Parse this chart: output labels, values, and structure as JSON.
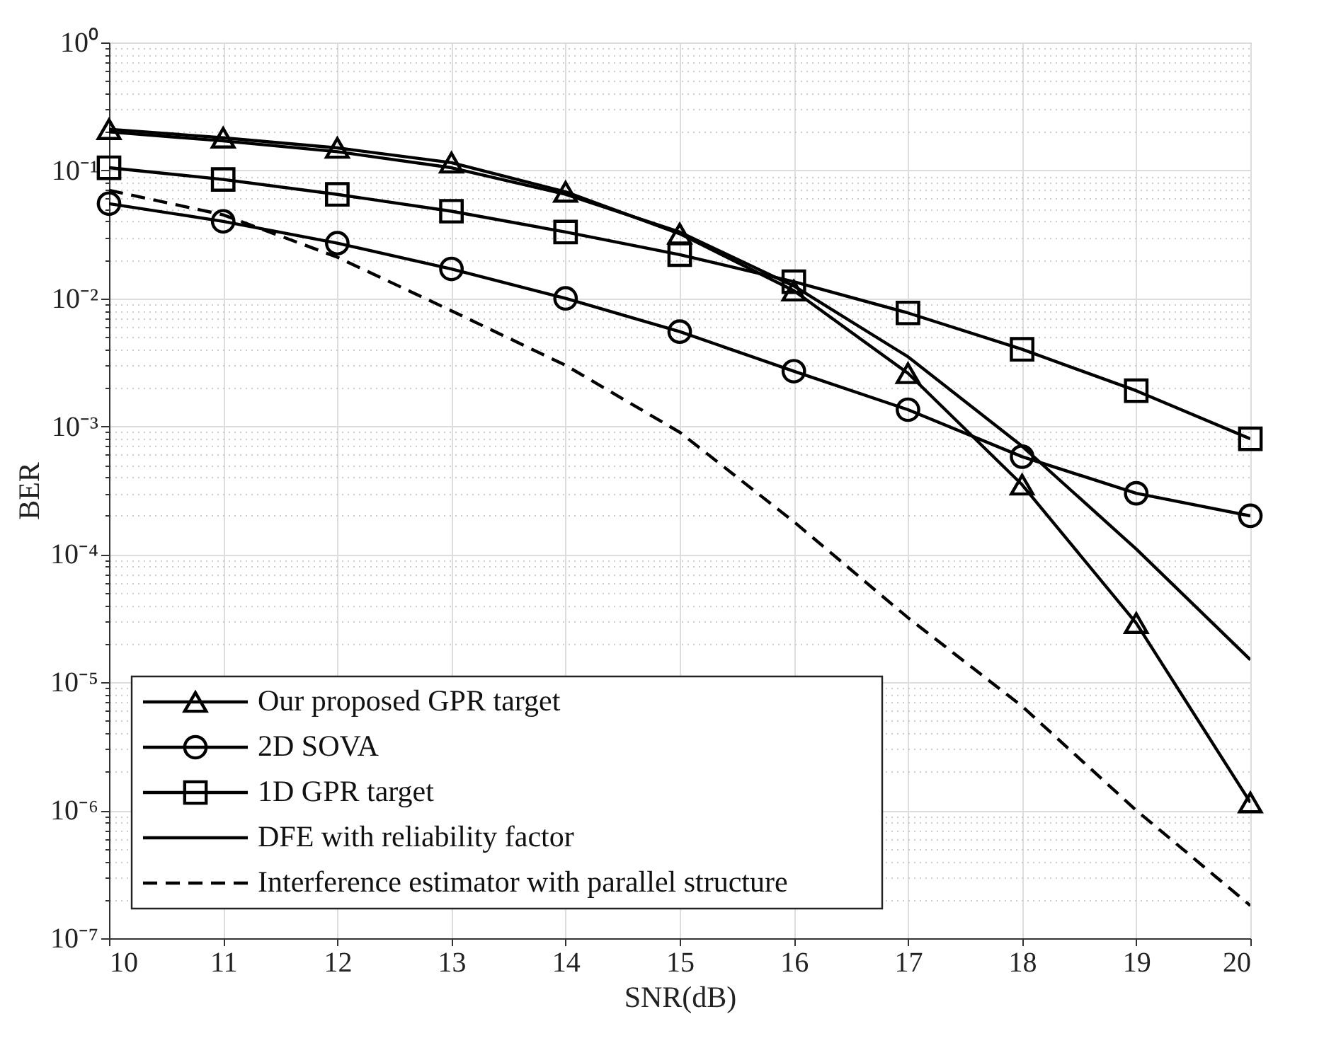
{
  "chart_data": {
    "type": "line",
    "xlabel": "SNR(dB)",
    "ylabel": "BER",
    "log": "y",
    "grid": true,
    "legend": "bottom left",
    "x": [
      10,
      11,
      12,
      13,
      14,
      15,
      16,
      17,
      18,
      19,
      20
    ],
    "xlim": [
      10,
      20
    ],
    "xticks": [
      10,
      11,
      12,
      13,
      14,
      15,
      16,
      17,
      18,
      19,
      20
    ],
    "ylim": [
      1e-07,
      1
    ],
    "yticks": [
      {
        "value": 1e-07,
        "label": "10⁻⁷"
      },
      {
        "value": 2e-07,
        "label": null
      },
      {
        "value": 3e-07,
        "label": null
      },
      {
        "value": 4e-07,
        "label": null
      },
      {
        "value": 5e-07,
        "label": null
      },
      {
        "value": 6e-07,
        "label": null
      },
      {
        "value": 7e-07,
        "label": null
      },
      {
        "value": 8e-07,
        "label": null
      },
      {
        "value": 9e-07,
        "label": null
      },
      {
        "value": 1e-06,
        "label": "10⁻⁶"
      },
      {
        "value": 2e-06,
        "label": null
      },
      {
        "value": 3e-06,
        "label": null
      },
      {
        "value": 4e-06,
        "label": null
      },
      {
        "value": 5e-06,
        "label": null
      },
      {
        "value": 6e-06,
        "label": null
      },
      {
        "value": 7e-06,
        "label": null
      },
      {
        "value": 8e-06,
        "label": null
      },
      {
        "value": 9e-06,
        "label": null
      },
      {
        "value": 1e-05,
        "label": "10⁻⁵"
      },
      {
        "value": 2e-05,
        "label": null
      },
      {
        "value": 3e-05,
        "label": null
      },
      {
        "value": 4e-05,
        "label": null
      },
      {
        "value": 5e-05,
        "label": null
      },
      {
        "value": 6e-05,
        "label": null
      },
      {
        "value": 7e-05,
        "label": null
      },
      {
        "value": 8e-05,
        "label": null
      },
      {
        "value": 9e-05,
        "label": null
      },
      {
        "value": 0.0001,
        "label": "10⁻⁴"
      },
      {
        "value": 0.0002,
        "label": null
      },
      {
        "value": 0.0003,
        "label": null
      },
      {
        "value": 0.0004,
        "label": null
      },
      {
        "value": 0.0005,
        "label": null
      },
      {
        "value": 0.0006,
        "label": null
      },
      {
        "value": 0.0007,
        "label": null
      },
      {
        "value": 0.0008,
        "label": null
      },
      {
        "value": 0.0009,
        "label": null
      },
      {
        "value": 0.001,
        "label": "10⁻³"
      },
      {
        "value": 0.002,
        "label": null
      },
      {
        "value": 0.003,
        "label": null
      },
      {
        "value": 0.004,
        "label": null
      },
      {
        "value": 0.005,
        "label": null
      },
      {
        "value": 0.006,
        "label": null
      },
      {
        "value": 0.007,
        "label": null
      },
      {
        "value": 0.008,
        "label": null
      },
      {
        "value": 0.009,
        "label": null
      },
      {
        "value": 0.01,
        "label": "10⁻²"
      },
      {
        "value": 0.02,
        "label": null
      },
      {
        "value": 0.03,
        "label": null
      },
      {
        "value": 0.04,
        "label": null
      },
      {
        "value": 0.05,
        "label": null
      },
      {
        "value": 0.06,
        "label": null
      },
      {
        "value": 0.07,
        "label": null
      },
      {
        "value": 0.08,
        "label": null
      },
      {
        "value": 0.09,
        "label": null
      },
      {
        "value": 0.1,
        "label": "10⁻¹"
      },
      {
        "value": 0.2,
        "label": null
      },
      {
        "value": 0.3,
        "label": null
      },
      {
        "value": 0.4,
        "label": null
      },
      {
        "value": 0.5,
        "label": null
      },
      {
        "value": 0.6,
        "label": null
      },
      {
        "value": 0.7,
        "label": null
      },
      {
        "value": 0.8,
        "label": null
      },
      {
        "value": 0.9,
        "label": null
      },
      {
        "value": 1,
        "label": "10⁰"
      }
    ],
    "series": [
      {
        "name": "Our proposed GPR target",
        "color": "#000000",
        "marker": "triangle",
        "line_style": "solid",
        "values": [
          0.21,
          0.18,
          0.15,
          0.115,
          0.068,
          0.032,
          0.0115,
          0.0026,
          0.00035,
          2.9e-05,
          1.15e-06
        ]
      },
      {
        "name": "2D SOVA",
        "color": "#000000",
        "marker": "circle",
        "line_style": "solid",
        "values": [
          0.055,
          0.04,
          0.027,
          0.017,
          0.01,
          0.0055,
          0.0027,
          0.00135,
          0.00058,
          0.0003,
          0.0002
        ]
      },
      {
        "name": "1D GPR target",
        "color": "#000000",
        "marker": "square",
        "line_style": "solid",
        "values": [
          0.105,
          0.085,
          0.065,
          0.048,
          0.033,
          0.022,
          0.0135,
          0.0077,
          0.004,
          0.0019,
          0.0008
        ]
      },
      {
        "name": "DFE with reliability factor",
        "color": "#000000",
        "marker": "none",
        "line_style": "solid",
        "values": [
          0.2,
          0.17,
          0.14,
          0.105,
          0.065,
          0.033,
          0.0125,
          0.0035,
          0.0007,
          0.00011,
          1.5e-05
        ]
      },
      {
        "name": "Interference estimator with parallel structure",
        "color": "#000000",
        "marker": "none",
        "line_style": "dashed",
        "values": [
          0.07,
          0.045,
          0.021,
          0.008,
          0.003,
          0.0009,
          0.00018,
          3.2e-05,
          6.5e-06,
          1e-06,
          1.8e-07
        ]
      }
    ]
  }
}
